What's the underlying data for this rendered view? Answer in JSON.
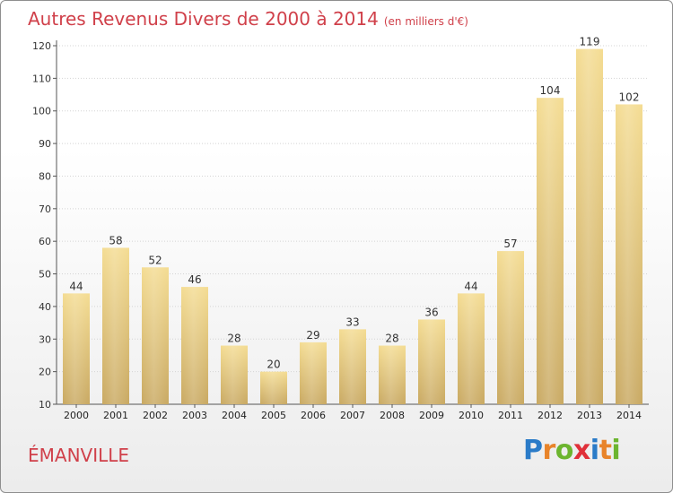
{
  "title": "Autres Revenus Divers de 2000 à 2014",
  "subtitle": "(en milliers d'€)",
  "place": "ÉMANVILLE",
  "logo": {
    "text": "Proxiti",
    "letters": [
      {
        "ch": "P",
        "color": "#2a7bc8"
      },
      {
        "ch": "r",
        "color": "#e8842a"
      },
      {
        "ch": "o",
        "color": "#6cb52f"
      },
      {
        "ch": "x",
        "color": "#e0303a"
      },
      {
        "ch": "i",
        "color": "#2a7bc8"
      },
      {
        "ch": "t",
        "color": "#e8842a"
      },
      {
        "ch": "i",
        "color": "#6cb52f"
      }
    ]
  },
  "chart_data": {
    "type": "bar",
    "categories": [
      "2000",
      "2001",
      "2002",
      "2003",
      "2004",
      "2005",
      "2006",
      "2007",
      "2008",
      "2009",
      "2010",
      "2011",
      "2012",
      "2013",
      "2014"
    ],
    "values": [
      44,
      58,
      52,
      46,
      28,
      20,
      29,
      33,
      28,
      36,
      44,
      57,
      104,
      119,
      102
    ],
    "ylim": [
      10,
      120
    ],
    "yticks": [
      10,
      20,
      30,
      40,
      50,
      60,
      70,
      80,
      90,
      100,
      110,
      120
    ],
    "grid": true,
    "bar_color": "#e8c97a"
  }
}
